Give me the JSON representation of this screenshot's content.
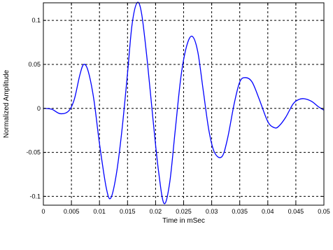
{
  "chart_data": {
    "type": "line",
    "title": "",
    "xlabel": "Time in mSec",
    "ylabel": "Normalized Amplitude",
    "xlim": [
      0,
      0.05
    ],
    "ylim": [
      -0.11,
      0.12
    ],
    "grid": true,
    "line_color": "#0000ff",
    "x_ticks": [
      0,
      0.005,
      0.01,
      0.015,
      0.02,
      0.025,
      0.03,
      0.035,
      0.04,
      0.045,
      0.05
    ],
    "x_tick_labels": [
      "0",
      "0.005",
      "0.01",
      "0.015",
      "0.02",
      "0.025",
      "0.03",
      "0.035",
      "0.04",
      "0.045",
      "0.05"
    ],
    "y_ticks": [
      -0.1,
      -0.05,
      0,
      0.05,
      0.1
    ],
    "y_tick_labels": [
      "-0.1",
      "-0.05",
      "0",
      "0.05",
      "0.1"
    ],
    "series": [
      {
        "x": [
          0,
          0.0015,
          0.003,
          0.0045,
          0.0055,
          0.0065,
          0.0072,
          0.008,
          0.009,
          0.01,
          0.0112,
          0.012,
          0.013,
          0.014,
          0.015,
          0.0158,
          0.0167,
          0.0175,
          0.0185,
          0.0195,
          0.0205,
          0.0215,
          0.0225,
          0.0235,
          0.0245,
          0.0255,
          0.0265,
          0.0275,
          0.0285,
          0.0295,
          0.0305,
          0.0318,
          0.0328,
          0.034,
          0.035,
          0.036,
          0.0372,
          0.0385,
          0.04,
          0.0412,
          0.042,
          0.0432,
          0.0445,
          0.0455,
          0.0465,
          0.0478,
          0.049,
          0.05
        ],
        "y": [
          0,
          -0.001,
          -0.006,
          -0.003,
          0.01,
          0.038,
          0.05,
          0.042,
          0.01,
          -0.04,
          -0.09,
          -0.102,
          -0.075,
          -0.025,
          0.04,
          0.095,
          0.12,
          0.108,
          0.055,
          -0.01,
          -0.07,
          -0.108,
          -0.085,
          -0.025,
          0.035,
          0.07,
          0.082,
          0.065,
          0.02,
          -0.025,
          -0.05,
          -0.055,
          -0.035,
          0.005,
          0.03,
          0.035,
          0.03,
          0.01,
          -0.015,
          -0.022,
          -0.02,
          -0.01,
          0.005,
          0.01,
          0.011,
          0.008,
          0.002,
          -0.002
        ]
      }
    ]
  }
}
